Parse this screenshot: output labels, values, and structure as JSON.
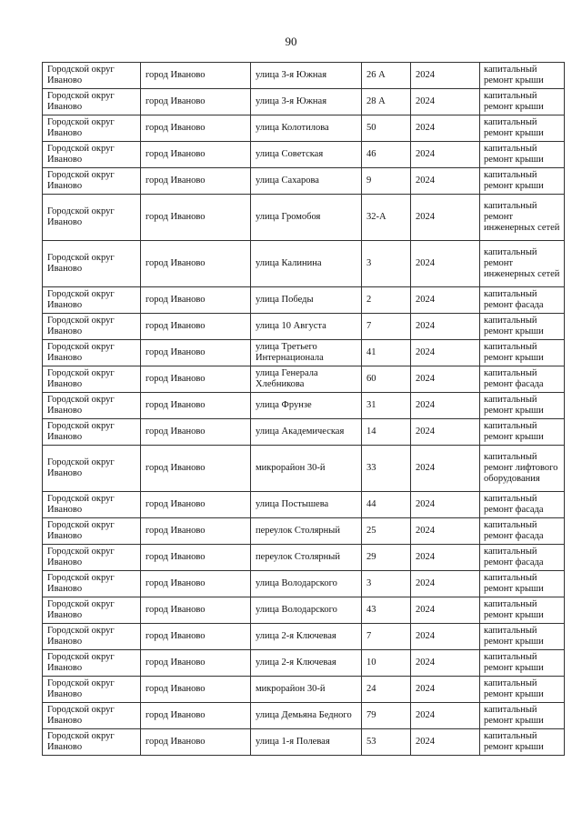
{
  "page_number": "90",
  "rows": [
    {
      "district": "Городской округ Иваново",
      "city": "город Иваново",
      "street": "улица 3-я Южная",
      "house": "26 А",
      "year": "2024",
      "work": "капитальный ремонт крыши"
    },
    {
      "district": "Городской округ Иваново",
      "city": "город Иваново",
      "street": "улица 3-я Южная",
      "house": "28 А",
      "year": "2024",
      "work": "капитальный ремонт крыши"
    },
    {
      "district": "Городской округ Иваново",
      "city": "город Иваново",
      "street": "улица Колотилова",
      "house": "50",
      "year": "2024",
      "work": "капитальный ремонт крыши"
    },
    {
      "district": "Городской округ Иваново",
      "city": "город Иваново",
      "street": "улица Советская",
      "house": "46",
      "year": "2024",
      "work": "капитальный ремонт крыши"
    },
    {
      "district": "Городской округ Иваново",
      "city": "город Иваново",
      "street": "улица Сахарова",
      "house": "9",
      "year": "2024",
      "work": "капитальный ремонт крыши"
    },
    {
      "district": "Городской округ Иваново",
      "city": "город Иваново",
      "street": "улица Громобоя",
      "house": "32-А",
      "year": "2024",
      "work": "капитальный ремонт инженерных сетей"
    },
    {
      "district": "Городской округ Иваново",
      "city": "город Иваново",
      "street": "улица Калинина",
      "house": "3",
      "year": "2024",
      "work": "капитальный ремонт инженерных сетей"
    },
    {
      "district": "Городской округ Иваново",
      "city": "город Иваново",
      "street": "улица Победы",
      "house": "2",
      "year": "2024",
      "work": "капитальный ремонт фасада"
    },
    {
      "district": "Городской округ Иваново",
      "city": "город Иваново",
      "street": "улица 10 Августа",
      "house": "7",
      "year": "2024",
      "work": "капитальный ремонт крыши"
    },
    {
      "district": "Городской округ Иваново",
      "city": "город Иваново",
      "street": "улица Третьего Интернационала",
      "house": "41",
      "year": "2024",
      "work": "капитальный ремонт крыши"
    },
    {
      "district": "Городской округ Иваново",
      "city": "город Иваново",
      "street": "улица Генерала Хлебникова",
      "house": "60",
      "year": "2024",
      "work": "капитальный ремонт фасада"
    },
    {
      "district": "Городской округ Иваново",
      "city": "город Иваново",
      "street": "улица Фрунзе",
      "house": "31",
      "year": "2024",
      "work": "капитальный ремонт крыши"
    },
    {
      "district": "Городской округ Иваново",
      "city": "город Иваново",
      "street": "улица Академическая",
      "house": "14",
      "year": "2024",
      "work": "капитальный ремонт крыши"
    },
    {
      "district": "Городской округ Иваново",
      "city": "город Иваново",
      "street": "микрорайон 30-й",
      "house": "33",
      "year": "2024",
      "work": "капитальный ремонт лифтового оборудования"
    },
    {
      "district": "Городской округ Иваново",
      "city": "город Иваново",
      "street": "улица Постышева",
      "house": "44",
      "year": "2024",
      "work": "капитальный ремонт фасада"
    },
    {
      "district": "Городской округ Иваново",
      "city": "город Иваново",
      "street": "переулок Столярный",
      "house": "25",
      "year": "2024",
      "work": "капитальный ремонт фасада"
    },
    {
      "district": "Городской округ Иваново",
      "city": "город Иваново",
      "street": "переулок Столярный",
      "house": "29",
      "year": "2024",
      "work": "капитальный ремонт фасада"
    },
    {
      "district": "Городской округ Иваново",
      "city": "город Иваново",
      "street": "улица Володарского",
      "house": "3",
      "year": "2024",
      "work": "капитальный ремонт крыши"
    },
    {
      "district": "Городской округ Иваново",
      "city": "город Иваново",
      "street": "улица Володарского",
      "house": "43",
      "year": "2024",
      "work": "капитальный ремонт крыши"
    },
    {
      "district": "Городской округ Иваново",
      "city": "город Иваново",
      "street": "улица 2-я Ключевая",
      "house": "7",
      "year": "2024",
      "work": "капитальный ремонт крыши"
    },
    {
      "district": "Городской округ Иваново",
      "city": "город Иваново",
      "street": "улица 2-я Ключевая",
      "house": "10",
      "year": "2024",
      "work": "капитальный ремонт крыши"
    },
    {
      "district": "Городской округ Иваново",
      "city": "город Иваново",
      "street": "микрорайон 30-й",
      "house": "24",
      "year": "2024",
      "work": "капитальный ремонт крыши"
    },
    {
      "district": "Городской округ Иваново",
      "city": "город Иваново",
      "street": "улица Демьяна Бедного",
      "house": "79",
      "year": "2024",
      "work": "капитальный ремонт крыши"
    },
    {
      "district": "Городской округ Иваново",
      "city": "город Иваново",
      "street": "улица 1-я Полевая",
      "house": "53",
      "year": "2024",
      "work": "капитальный ремонт крыши"
    }
  ]
}
